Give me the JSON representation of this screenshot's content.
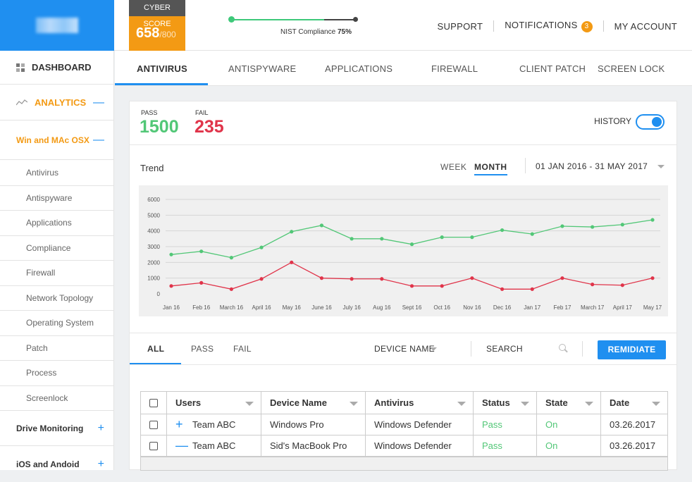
{
  "header": {
    "cyber_score_label": "CYBER SCORE",
    "cyber_score_value": "658",
    "cyber_score_max": "/800",
    "nist_label": "NIST Compliance",
    "nist_value": "75%",
    "nist_progress": 0.75,
    "support": "SUPPORT",
    "notifications": "NOTIFICATIONS",
    "notifications_count": "3",
    "my_account": "MY ACCOUNT"
  },
  "sidebar": {
    "dashboard": "DASHBOARD",
    "analytics": "ANALYTICS",
    "win_mac": "Win and MAc OSX",
    "sub_items": [
      "Antivirus",
      "Antispyware",
      "Applications",
      "Compliance",
      "Firewall",
      "Network Topology",
      "Operating System",
      "Patch",
      "Process",
      "Screenlock"
    ],
    "drive_monitoring": "Drive Monitoring",
    "ios_android": "iOS and Andoid"
  },
  "tabs": [
    "ANTIVIRUS",
    "ANTISPYWARE",
    "APPLICATIONS",
    "FIREWALL",
    "CLIENT PATCH",
    "SCREEN LOCK"
  ],
  "summary": {
    "pass_label": "PASS",
    "pass_value": "1500",
    "fail_label": "FAIL",
    "fail_value": "235",
    "history_label": "HISTORY"
  },
  "trend": {
    "label": "Trend",
    "week": "WEEK",
    "month": "MONTH",
    "date_range": "01 JAN 2016 - 31 MAY 2017"
  },
  "chart_data": {
    "type": "line",
    "categories": [
      "Jan 16",
      "Feb 16",
      "March 16",
      "April 16",
      "May 16",
      "June 16",
      "July 16",
      "Aug 16",
      "Sept 16",
      "Oct 16",
      "Nov 16",
      "Dec 16",
      "Jan 17",
      "Feb 17",
      "March 17",
      "April 17",
      "May 17"
    ],
    "series": [
      {
        "color": "#52c777",
        "values": [
          2500,
          2700,
          2300,
          2950,
          3950,
          4350,
          3500,
          3500,
          3150,
          3600,
          3600,
          4050,
          3800,
          4300,
          4250,
          4400,
          4700
        ]
      },
      {
        "color": "#e0344a",
        "values": [
          500,
          700,
          300,
          950,
          2000,
          1000,
          950,
          950,
          500,
          500,
          1000,
          300,
          300,
          1000,
          600,
          550,
          1000
        ]
      }
    ],
    "yticks": [
      0,
      1000,
      2000,
      3000,
      4000,
      5000,
      6000
    ],
    "ylim": [
      0,
      6000
    ],
    "grid": true
  },
  "filters": {
    "all": "ALL",
    "pass": "PASS",
    "fail": "FAIL",
    "device_name": "DEVICE NAME",
    "search": "SEARCH",
    "remediate": "REMIDIATE"
  },
  "table": {
    "headers": [
      "Users",
      "Device Name",
      "Antivirus",
      "Status",
      "State",
      "Date"
    ],
    "rows": [
      {
        "expander": "+",
        "user": "Team ABC",
        "device": "Windows Pro",
        "antivirus": "Windows Defender",
        "status": "Pass",
        "state": "On",
        "date": "03.26.2017"
      },
      {
        "expander": "—",
        "user": "Team ABC",
        "device": "Sid's MacBook Pro",
        "antivirus": "Windows Defender",
        "status": "Pass",
        "state": "On",
        "date": "03.26.2017"
      }
    ]
  }
}
